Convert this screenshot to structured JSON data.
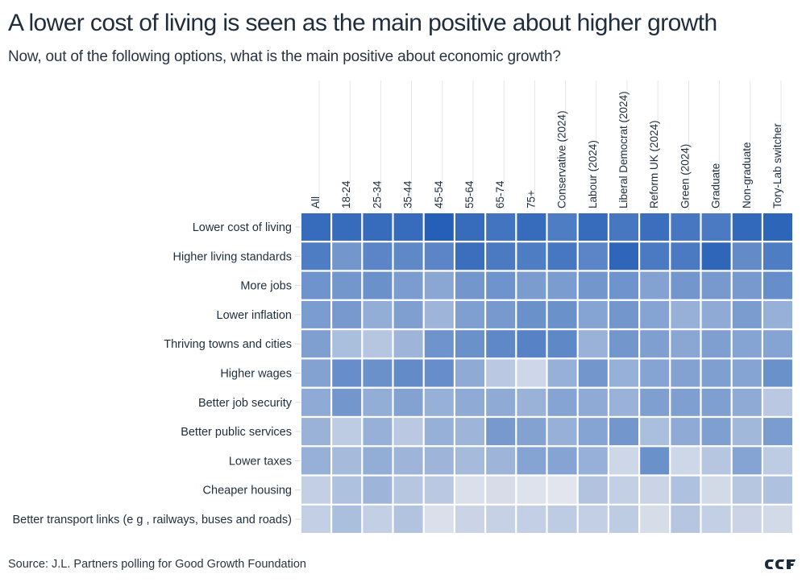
{
  "title": "A lower cost of living is seen as the main positive about higher growth",
  "subtitle": "Now, out of the following options, what is the main positive about economic growth?",
  "source": "Source: J.L. Partners polling for Good Growth Foundation",
  "logo_text": "GGF",
  "chart_data": {
    "type": "heatmap",
    "title": "A lower cost of living is seen as the main positive about higher growth",
    "subtitle": "Now, out of the following options, what is the main positive about economic growth?",
    "value_scale": "relative intensity (0 = lightest, 1 = darkest)",
    "color_low": "#e6e8ee",
    "color_high": "#1f5bb5",
    "columns": [
      "All",
      "18-24",
      "25-34",
      "35-44",
      "45-54",
      "55-64",
      "65-74",
      "75+",
      "Conservative (2024)",
      "Labour (2024)",
      "Liberal Democrat (2024)",
      "Reform UK (2024)",
      "Green (2024)",
      "Graduate",
      "Non-graduate",
      "Tory-Lab switcher"
    ],
    "rows": [
      "Lower cost of living",
      "Higher living standards",
      "More jobs",
      "Lower inflation",
      "Thriving towns and cities",
      "Higher wages",
      "Better job security",
      "Better public services",
      "Lower taxes",
      "Cheaper housing",
      "Better transport links (e g , railways, buses and roads)"
    ],
    "values": [
      [
        0.88,
        0.88,
        0.88,
        0.88,
        0.97,
        0.88,
        0.82,
        0.88,
        0.76,
        0.88,
        0.8,
        0.86,
        0.8,
        0.78,
        0.9,
        0.93
      ],
      [
        0.76,
        0.58,
        0.7,
        0.68,
        0.7,
        0.86,
        0.78,
        0.76,
        0.8,
        0.7,
        0.92,
        0.78,
        0.78,
        0.92,
        0.66,
        0.76
      ],
      [
        0.6,
        0.58,
        0.62,
        0.54,
        0.46,
        0.58,
        0.6,
        0.54,
        0.54,
        0.58,
        0.6,
        0.5,
        0.58,
        0.56,
        0.56,
        0.64
      ],
      [
        0.54,
        0.56,
        0.42,
        0.52,
        0.36,
        0.52,
        0.56,
        0.62,
        0.62,
        0.48,
        0.58,
        0.48,
        0.4,
        0.44,
        0.54,
        0.4
      ],
      [
        0.52,
        0.3,
        0.24,
        0.36,
        0.6,
        0.62,
        0.68,
        0.72,
        0.68,
        0.38,
        0.58,
        0.52,
        0.46,
        0.52,
        0.48,
        0.48
      ],
      [
        0.5,
        0.64,
        0.62,
        0.66,
        0.64,
        0.44,
        0.22,
        0.12,
        0.4,
        0.58,
        0.4,
        0.48,
        0.5,
        0.52,
        0.48,
        0.62
      ],
      [
        0.44,
        0.58,
        0.42,
        0.5,
        0.4,
        0.44,
        0.44,
        0.38,
        0.48,
        0.44,
        0.38,
        0.52,
        0.52,
        0.52,
        0.44,
        0.22
      ],
      [
        0.38,
        0.2,
        0.4,
        0.22,
        0.4,
        0.36,
        0.56,
        0.5,
        0.4,
        0.48,
        0.58,
        0.3,
        0.44,
        0.52,
        0.34,
        0.54
      ],
      [
        0.4,
        0.32,
        0.42,
        0.36,
        0.36,
        0.32,
        0.36,
        0.48,
        0.48,
        0.4,
        0.12,
        0.62,
        0.12,
        0.24,
        0.48,
        0.2
      ],
      [
        0.18,
        0.28,
        0.36,
        0.24,
        0.22,
        0.06,
        0.08,
        0.04,
        0.02,
        0.26,
        0.18,
        0.14,
        0.28,
        0.1,
        0.24,
        0.28
      ],
      [
        0.18,
        0.3,
        0.18,
        0.26,
        0.06,
        0.14,
        0.16,
        0.18,
        0.2,
        0.18,
        0.2,
        0.08,
        0.24,
        0.18,
        0.14,
        0.1
      ]
    ]
  }
}
